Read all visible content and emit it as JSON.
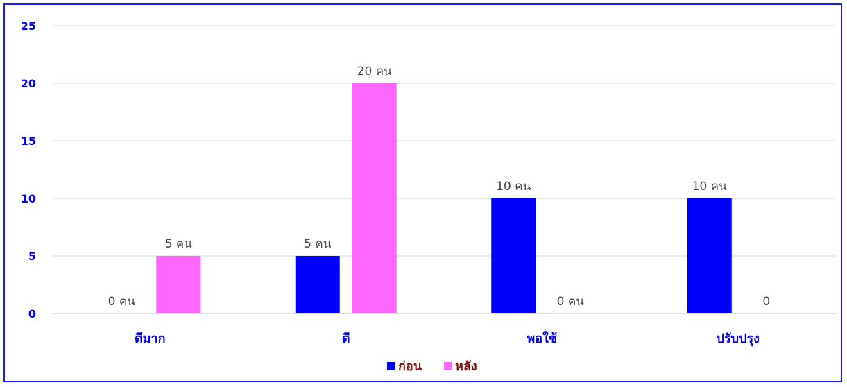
{
  "chart_data": {
    "type": "bar",
    "categories": [
      "ดีมาก",
      "ดี",
      "พอใช้",
      "ปรับปรุง"
    ],
    "series": [
      {
        "name": "ก่อน",
        "values": [
          0,
          5,
          10,
          10
        ],
        "color": "#0000ff",
        "labels": [
          "0 คน",
          "5 คน",
          "10 คน",
          "10 คน"
        ]
      },
      {
        "name": "หลัง",
        "values": [
          5,
          20,
          0,
          0
        ],
        "color": "#ff66ff",
        "labels": [
          "5 คน",
          "20 คน",
          "0 คน",
          "0"
        ]
      }
    ],
    "yticks": [
      "0",
      "5",
      "10",
      "15",
      "20",
      "25"
    ],
    "ylim": [
      0,
      25
    ],
    "grid": true,
    "legend_position": "bottom"
  }
}
